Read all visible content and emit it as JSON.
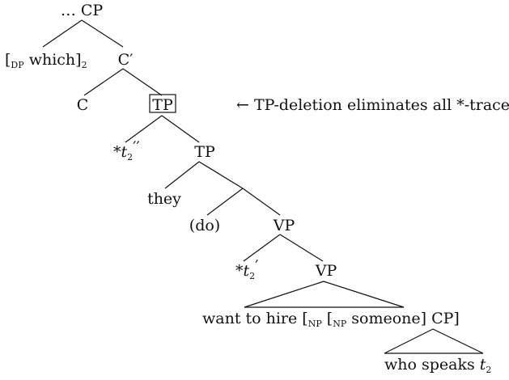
{
  "tree": {
    "root": "… CP",
    "spec_cp": {
      "open": "[",
      "sub": "DP",
      "word": " which]",
      "index": "2"
    },
    "c_bar": "C′",
    "c_head": "C",
    "tp_boxed": "TP",
    "annotation": "← TP-deletion eliminates all *-traces",
    "trace_double": {
      "star": "*",
      "t": "t",
      "index": "2",
      "primes": "′′"
    },
    "tp_inner": "TP",
    "subject": "they",
    "aux": "(do)",
    "vp_upper": "VP",
    "trace_single": {
      "star": "*",
      "t": "t",
      "index": "2",
      "primes": "′"
    },
    "vp_lower": "VP",
    "vp_content": {
      "pre": "want to hire [",
      "sub1": "NP",
      "mid": " [",
      "sub2": "NP",
      "post": " someone] CP]"
    },
    "cp_content": {
      "text": "who speaks ",
      "t": "t",
      "index": "2"
    }
  }
}
